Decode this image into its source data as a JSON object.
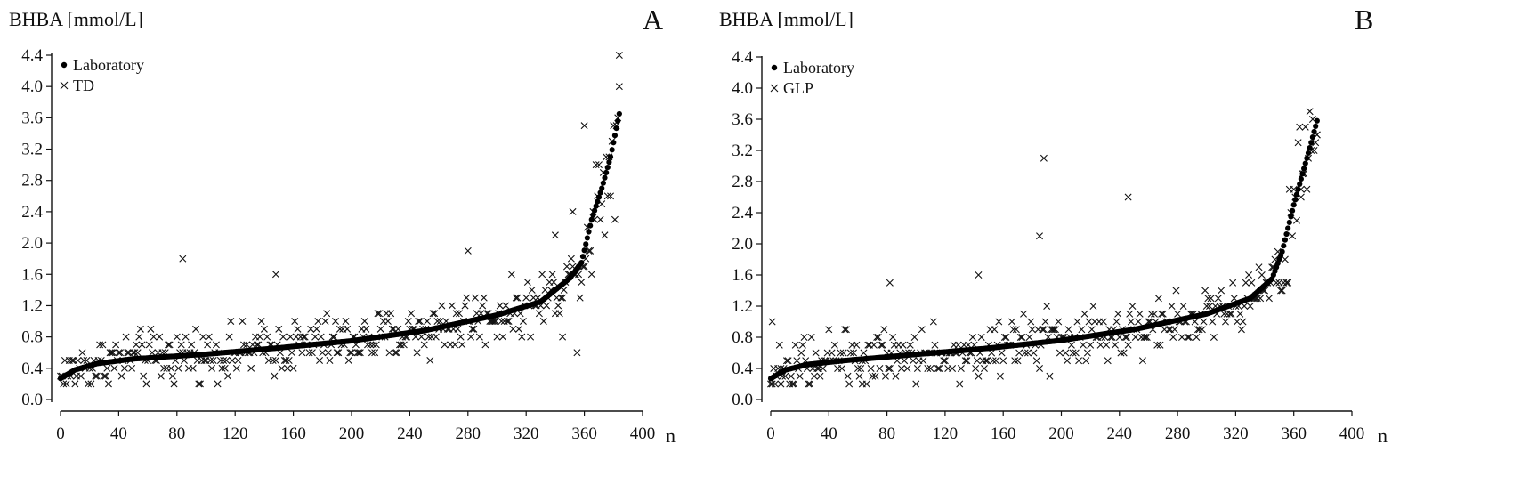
{
  "chart_data": [
    {
      "type": "scatter",
      "panel_label": "A",
      "ylabel": "BHBA [mmol/L]",
      "xlabel": "n",
      "xlim": [
        0,
        400
      ],
      "ylim": [
        0,
        4.4
      ],
      "xticks": [
        0,
        40,
        80,
        120,
        160,
        200,
        240,
        280,
        320,
        360,
        400
      ],
      "yticks": [
        "0.0",
        "0.4",
        "0.8",
        "1.2",
        "1.6",
        "2.0",
        "2.4",
        "2.8",
        "3.2",
        "3.6",
        "4.0",
        "4.4"
      ],
      "legend": [
        {
          "marker": "•",
          "label": "Laboratory"
        },
        {
          "marker": "×",
          "label": "TD"
        }
      ],
      "n_points": 385,
      "series": [
        {
          "name": "Laboratory",
          "marker": "dot",
          "description_curve": [
            [
              0,
              0.27
            ],
            [
              10,
              0.38
            ],
            [
              25,
              0.46
            ],
            [
              50,
              0.52
            ],
            [
              100,
              0.58
            ],
            [
              150,
              0.66
            ],
            [
              200,
              0.75
            ],
            [
              250,
              0.88
            ],
            [
              300,
              1.08
            ],
            [
              330,
              1.25
            ],
            [
              350,
              1.55
            ],
            [
              358,
              1.75
            ],
            [
              365,
              2.3
            ],
            [
              372,
              2.7
            ],
            [
              378,
              3.1
            ],
            [
              384,
              3.65
            ]
          ]
        },
        {
          "name": "TD",
          "marker": "cross",
          "outliers": [
            [
              84,
              1.8
            ],
            [
              148,
              1.6
            ],
            [
              384,
              4.4
            ],
            [
              360,
              3.5
            ],
            [
              340,
              2.1
            ],
            [
              352,
              2.4
            ],
            [
              280,
              1.9
            ],
            [
              345,
              0.8
            ]
          ]
        }
      ]
    },
    {
      "type": "scatter",
      "panel_label": "B",
      "ylabel": "BHBA [mmol/L]",
      "xlabel": "n",
      "xlim": [
        0,
        400
      ],
      "ylim": [
        0,
        4.4
      ],
      "xticks": [
        0,
        40,
        80,
        120,
        160,
        200,
        240,
        280,
        320,
        360,
        400
      ],
      "yticks": [
        "0.0",
        "0.4",
        "0.8",
        "1.2",
        "1.6",
        "2.0",
        "2.4",
        "2.8",
        "3.2",
        "3.6",
        "4.0",
        "4.4"
      ],
      "legend": [
        {
          "marker": "•",
          "label": "Laboratory"
        },
        {
          "marker": "×",
          "label": "GLP"
        }
      ],
      "n_points": 377,
      "series": [
        {
          "name": "Laboratory",
          "marker": "dot",
          "description_curve": [
            [
              0,
              0.27
            ],
            [
              10,
              0.38
            ],
            [
              25,
              0.45
            ],
            [
              50,
              0.5
            ],
            [
              100,
              0.58
            ],
            [
              150,
              0.66
            ],
            [
              200,
              0.76
            ],
            [
              250,
              0.9
            ],
            [
              300,
              1.1
            ],
            [
              330,
              1.3
            ],
            [
              345,
              1.55
            ],
            [
              352,
              1.9
            ],
            [
              360,
              2.5
            ],
            [
              366,
              2.9
            ],
            [
              372,
              3.3
            ],
            [
              377,
              3.65
            ]
          ]
        },
        {
          "name": "GLP",
          "marker": "cross",
          "outliers": [
            [
              188,
              3.1
            ],
            [
              246,
              2.6
            ],
            [
              185,
              2.1
            ],
            [
              143,
              1.6
            ],
            [
              82,
              1.5
            ],
            [
              376,
              3.4
            ],
            [
              365,
              2.7
            ],
            [
              1,
              1.0
            ],
            [
              7,
              0.2
            ],
            [
              63,
              0.2
            ]
          ]
        }
      ]
    }
  ]
}
